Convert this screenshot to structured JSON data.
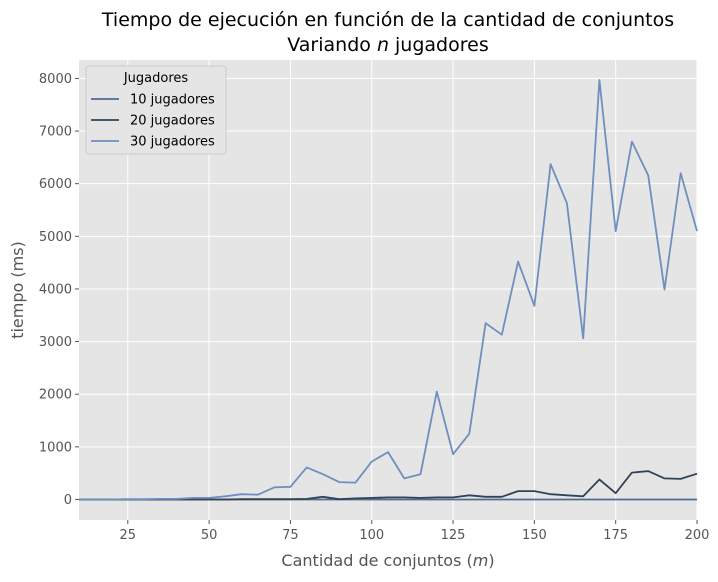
{
  "chart_data": {
    "type": "line",
    "title_line1": "Tiempo de ejecución en función de la cantidad de conjuntos",
    "title_line2_prefix": "Variando ",
    "title_line2_var": "n",
    "title_line2_suffix": " jugadores",
    "xlabel_prefix": "Cantidad de conjuntos (",
    "xlabel_var": "m",
    "xlabel_suffix": ")",
    "ylabel": "tiempo (ms)",
    "xlim": [
      10,
      200
    ],
    "ylim": [
      -390,
      8350
    ],
    "xticks": [
      25,
      50,
      75,
      100,
      125,
      150,
      175,
      200
    ],
    "yticks": [
      0,
      1000,
      2000,
      3000,
      4000,
      5000,
      6000,
      7000,
      8000
    ],
    "grid": true,
    "legend_title": "Jugadores",
    "legend_position": "top-left",
    "x": [
      10,
      15,
      20,
      25,
      30,
      35,
      40,
      45,
      50,
      55,
      60,
      65,
      70,
      75,
      80,
      85,
      90,
      95,
      100,
      105,
      110,
      115,
      120,
      125,
      130,
      135,
      140,
      145,
      150,
      155,
      160,
      165,
      170,
      175,
      180,
      185,
      190,
      195,
      200
    ],
    "series": [
      {
        "name": "10 jugadores",
        "color": "#4c6a94",
        "values": [
          0,
          0,
          0,
          0,
          0,
          0,
          0,
          0,
          0,
          0,
          0,
          0,
          0,
          0,
          0,
          0,
          0,
          0,
          0,
          0,
          0,
          0,
          0,
          0,
          0,
          0,
          0,
          0,
          0,
          0,
          0,
          0,
          0,
          0,
          0,
          0,
          0,
          0,
          0
        ]
      },
      {
        "name": "20 jugadores",
        "color": "#334355",
        "values": [
          0,
          0,
          0,
          0,
          0,
          0,
          0,
          0,
          0,
          0,
          5,
          5,
          5,
          5,
          10,
          50,
          5,
          20,
          30,
          40,
          40,
          30,
          40,
          40,
          80,
          50,
          50,
          160,
          160,
          100,
          80,
          60,
          380,
          120,
          510,
          540,
          400,
          390,
          490
        ]
      },
      {
        "name": "30 jugadores",
        "color": "#6f8fbf",
        "values": [
          0,
          0,
          0,
          5,
          5,
          10,
          10,
          30,
          30,
          60,
          100,
          90,
          230,
          240,
          610,
          480,
          330,
          320,
          720,
          900,
          400,
          480,
          2050,
          860,
          1250,
          3350,
          3130,
          4520,
          3680,
          6370,
          5630,
          3060,
          7970,
          5100,
          6800,
          6160,
          3990,
          6200,
          5100
        ]
      }
    ]
  }
}
